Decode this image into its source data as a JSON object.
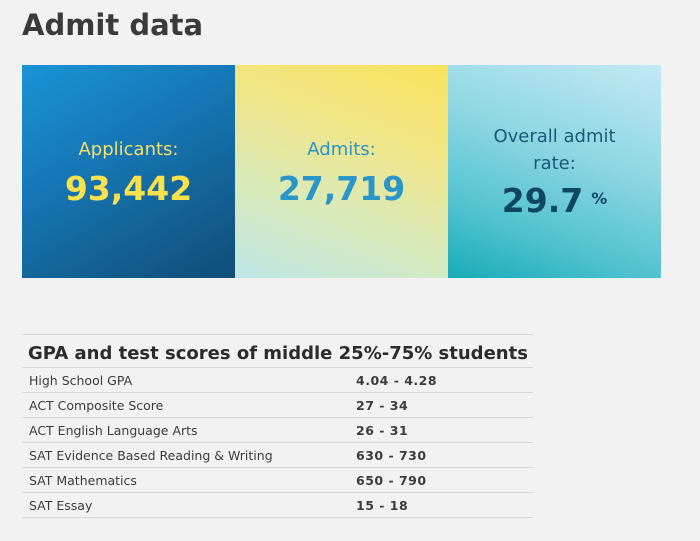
{
  "page": {
    "title": "Admit data"
  },
  "stats": {
    "applicants": {
      "label": "Applicants:",
      "value": "93,442"
    },
    "admits": {
      "label": "Admits:",
      "value": "27,719"
    },
    "admit_rate": {
      "label": "Overall admit rate:",
      "value": "29.7",
      "unit": "%"
    }
  },
  "scores": {
    "title": "GPA and test scores of middle 25%-75% students",
    "rows": [
      {
        "label": "High School GPA",
        "value": "4.04 - 4.28"
      },
      {
        "label": "ACT Composite Score",
        "value": "27 - 34"
      },
      {
        "label": "ACT English Language Arts",
        "value": "26 - 31"
      },
      {
        "label": "SAT Evidence Based Reading & Writing",
        "value": "630 - 730"
      },
      {
        "label": "SAT Mathematics",
        "value": "650 - 790"
      },
      {
        "label": "SAT Essay",
        "value": "15 - 18"
      }
    ]
  },
  "colors": {
    "applicants_card": "#1677b6",
    "admits_card": "#f0e58a",
    "rate_card": "#4fc1cf",
    "applicants_text": "#f9e24b",
    "admits_text": "#2a95c9",
    "rate_text": "#0f4662"
  }
}
